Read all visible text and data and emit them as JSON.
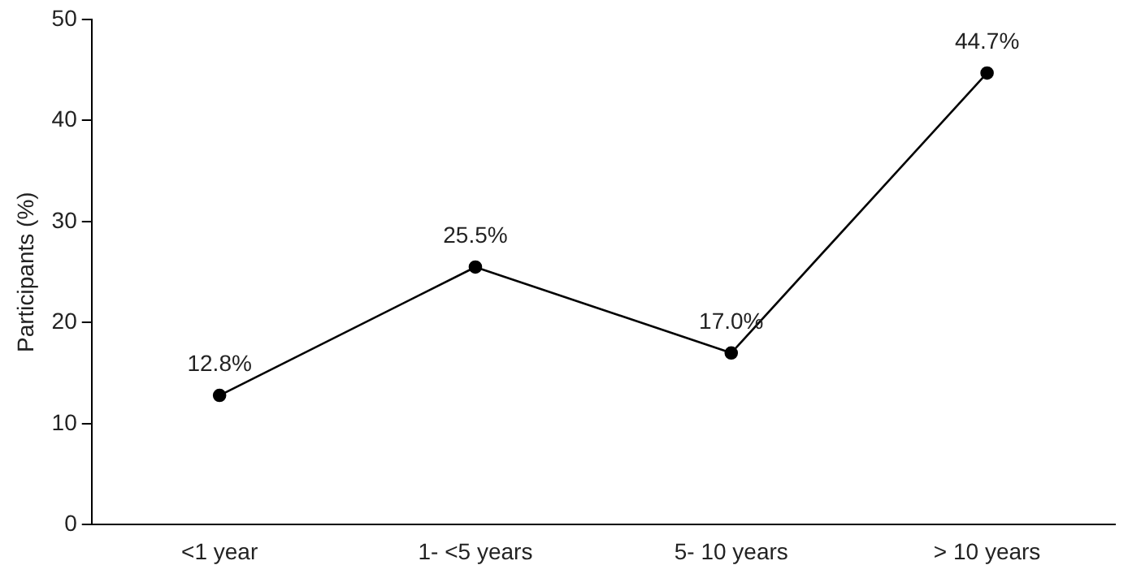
{
  "chart_data": {
    "type": "line",
    "ylabel": "Participants (%)",
    "categories": [
      "<1 year",
      "1- <5 years",
      "5- 10 years",
      "> 10 years"
    ],
    "series": [
      {
        "color": "#000000",
        "values": [
          12.8,
          25.5,
          17.0,
          44.7
        ],
        "value_labels": [
          "12.8%",
          "25.5%",
          "17.0%",
          "44.7%"
        ]
      }
    ],
    "ylim": [
      0,
      50
    ],
    "yticks": [
      0,
      10,
      20,
      30,
      40,
      50
    ],
    "grid": false,
    "legend": false,
    "marker": "circle",
    "line_style": "solid"
  }
}
